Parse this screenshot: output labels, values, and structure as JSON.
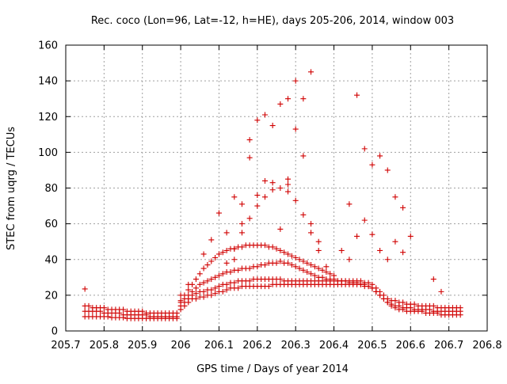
{
  "chart_data": {
    "type": "scatter",
    "title": "Rec. coco (Lon=96, Lat=-12, h=HE), days 205-206, 2014, window 003",
    "xlabel": "GPS time / Days of year 2014",
    "ylabel": "STEC from uqrg / TECUs",
    "xlim": [
      205.7,
      206.8
    ],
    "ylim": [
      0,
      160
    ],
    "xticks": [
      "205.7",
      "205.8",
      "205.9",
      "206",
      "206.1",
      "206.2",
      "206.3",
      "206.4",
      "206.5",
      "206.6",
      "206.7",
      "206.8"
    ],
    "yticks": [
      "0",
      "20",
      "40",
      "60",
      "80",
      "100",
      "120",
      "140",
      "160"
    ],
    "grid": true,
    "marker": "+",
    "color": "#d00000",
    "series": [
      {
        "x": [
          205.75,
          205.76,
          205.77,
          205.78,
          205.79,
          205.8,
          205.81,
          205.82,
          205.83,
          205.84,
          205.85,
          205.86,
          205.87,
          205.88,
          205.89,
          205.9,
          205.91,
          205.92,
          205.93,
          205.94,
          205.95,
          205.96,
          205.97,
          205.98,
          205.99,
          206.0,
          206.01,
          206.02,
          206.03,
          206.04,
          206.05,
          206.06,
          206.07,
          206.08,
          206.09,
          206.1,
          206.11,
          206.12,
          206.13,
          206.14,
          206.15,
          206.16,
          206.17,
          206.18,
          206.19,
          206.2,
          206.21,
          206.22,
          206.23,
          206.24,
          206.25,
          206.26,
          206.27,
          206.28,
          206.29,
          206.3,
          206.31,
          206.32,
          206.33,
          206.34,
          206.35,
          206.36,
          206.37,
          206.38,
          206.39,
          206.4,
          206.41,
          206.42,
          206.43,
          206.44,
          206.45,
          206.46,
          206.47,
          206.48,
          206.49,
          206.5,
          206.51,
          206.52,
          206.53,
          206.54,
          206.55,
          206.56,
          206.57,
          206.58,
          206.59,
          206.6,
          206.61,
          206.62,
          206.63,
          206.64,
          206.65,
          206.66,
          206.67,
          206.68,
          206.69,
          206.7,
          206.71,
          206.72,
          206.73
        ],
        "y": [
          8,
          8,
          8,
          8,
          8,
          8,
          8,
          7.5,
          7.5,
          7.5,
          7.5,
          7,
          7,
          7,
          7,
          7,
          7,
          7,
          7,
          7,
          7,
          7,
          7,
          7,
          7,
          12,
          14,
          16,
          18,
          18,
          19,
          19,
          20,
          20,
          21,
          22,
          22,
          23,
          24,
          24,
          24,
          25,
          25,
          25,
          25,
          25,
          25,
          25,
          25,
          26,
          26,
          26,
          26,
          26,
          26,
          26,
          26,
          26,
          26,
          26,
          26,
          26,
          26,
          26,
          26,
          26,
          26,
          26,
          26,
          26,
          26,
          26,
          26,
          25,
          25,
          24,
          22,
          20,
          18,
          16,
          14,
          13,
          12,
          12,
          11,
          11,
          11,
          11,
          11,
          10,
          10,
          10,
          10,
          9,
          9,
          9,
          9,
          9,
          9
        ]
      },
      {
        "x": [
          205.75,
          205.76,
          205.77,
          205.78,
          205.79,
          205.8,
          205.81,
          205.82,
          205.83,
          205.84,
          205.85,
          205.86,
          205.87,
          205.88,
          205.89,
          205.9,
          205.91,
          205.92,
          205.93,
          205.94,
          205.95,
          205.96,
          205.97,
          205.98,
          205.99,
          206.0,
          206.01,
          206.02,
          206.03,
          206.04,
          206.05,
          206.06,
          206.07,
          206.08,
          206.09,
          206.1,
          206.11,
          206.12,
          206.13,
          206.14,
          206.15,
          206.16,
          206.17,
          206.18,
          206.19,
          206.2,
          206.21,
          206.22,
          206.23,
          206.24,
          206.25,
          206.26,
          206.27,
          206.28,
          206.29,
          206.3,
          206.31,
          206.32,
          206.33,
          206.34,
          206.35,
          206.36,
          206.37,
          206.38,
          206.39,
          206.4,
          206.41,
          206.42,
          206.43,
          206.44,
          206.45,
          206.46,
          206.47,
          206.48,
          206.49,
          206.5,
          206.51,
          206.52,
          206.53,
          206.54,
          206.55,
          206.56,
          206.57,
          206.58,
          206.59,
          206.6,
          206.61,
          206.62,
          206.63,
          206.64,
          206.65,
          206.66,
          206.67,
          206.68,
          206.69,
          206.7,
          206.71,
          206.72,
          206.73
        ],
        "y": [
          11,
          11,
          11,
          11,
          11,
          10,
          10,
          10,
          10,
          10,
          9,
          9,
          9,
          9,
          9,
          9,
          9,
          8,
          8,
          8,
          8,
          8,
          8,
          8,
          8,
          14,
          16,
          18,
          20,
          21,
          22,
          22,
          23,
          23,
          24,
          25,
          26,
          26,
          27,
          27,
          28,
          28,
          28,
          28,
          29,
          29,
          29,
          29,
          29,
          29,
          29,
          29,
          28,
          28,
          28,
          28,
          28,
          28,
          28,
          28,
          28,
          28,
          28,
          28,
          28,
          28,
          28,
          28,
          28,
          27,
          27,
          27,
          26,
          26,
          25,
          24,
          22,
          20,
          18,
          16,
          15,
          14,
          14,
          13,
          13,
          13,
          12,
          12,
          12,
          12,
          12,
          11,
          11,
          11,
          11,
          11,
          11,
          11,
          11
        ]
      },
      {
        "x": [
          205.75,
          205.76,
          205.77,
          205.78,
          205.79,
          205.8,
          205.81,
          205.82,
          205.83,
          205.84,
          205.85,
          205.86,
          205.87,
          205.88,
          205.89,
          205.9,
          205.91,
          205.92,
          205.93,
          205.94,
          205.95,
          205.96,
          205.97,
          205.98,
          205.99,
          206.0,
          206.01,
          206.02,
          206.03,
          206.04,
          206.05,
          206.06,
          206.07,
          206.08,
          206.09,
          206.1,
          206.11,
          206.12,
          206.13,
          206.14,
          206.15,
          206.16,
          206.17,
          206.18,
          206.19,
          206.2,
          206.21,
          206.22,
          206.23,
          206.24,
          206.25,
          206.26,
          206.27,
          206.28,
          206.29,
          206.3,
          206.31,
          206.32,
          206.33,
          206.34,
          206.35,
          206.36,
          206.37,
          206.38,
          206.39,
          206.4,
          206.41,
          206.42,
          206.43,
          206.44,
          206.45,
          206.46,
          206.47,
          206.48,
          206.49,
          206.5,
          206.51,
          206.52,
          206.53,
          206.54,
          206.55,
          206.56,
          206.57,
          206.58,
          206.59,
          206.6,
          206.61,
          206.62,
          206.63,
          206.64,
          206.65,
          206.66,
          206.67,
          206.68,
          206.69,
          206.7,
          206.71,
          206.72,
          206.73
        ],
        "y": [
          14,
          14,
          13,
          13,
          13,
          13,
          12,
          12,
          12,
          12,
          12,
          11,
          11,
          11,
          11,
          11,
          10,
          10,
          10,
          10,
          10,
          10,
          10,
          10,
          10,
          16,
          18,
          20,
          22,
          24,
          26,
          27,
          28,
          29,
          30,
          31,
          32,
          33,
          33,
          34,
          34,
          35,
          35,
          35,
          36,
          36,
          37,
          37,
          38,
          38,
          38,
          39,
          38,
          38,
          37,
          36,
          35,
          34,
          33,
          32,
          31,
          30,
          30,
          29,
          29,
          29,
          28,
          28,
          28,
          28,
          28,
          28,
          28,
          27,
          27,
          26,
          24,
          22,
          20,
          18,
          17,
          17,
          16,
          16,
          15,
          15,
          15,
          14,
          14,
          14,
          14,
          14,
          13,
          13,
          13,
          13,
          13,
          13,
          13
        ]
      },
      {
        "x": [
          206.0,
          206.01,
          206.02,
          206.03,
          206.04,
          206.05,
          206.06,
          206.07,
          206.08,
          206.09,
          206.1,
          206.11,
          206.12,
          206.13,
          206.14,
          206.15,
          206.16,
          206.17,
          206.18,
          206.19,
          206.2,
          206.21,
          206.22,
          206.23,
          206.24,
          206.25,
          206.26,
          206.27,
          206.28,
          206.29,
          206.3,
          206.31,
          206.32,
          206.33,
          206.34,
          206.35,
          206.36,
          206.37,
          206.38,
          206.39,
          206.4
        ],
        "y": [
          17,
          20,
          23,
          26,
          29,
          32,
          35,
          37,
          39,
          41,
          43,
          44,
          45,
          46,
          46,
          47,
          47,
          48,
          48,
          48,
          48,
          48,
          48,
          47,
          47,
          46,
          45,
          44,
          43,
          42,
          41,
          40,
          39,
          38,
          37,
          36,
          35,
          34,
          33,
          32,
          31
        ]
      },
      {
        "x": [
          206.12,
          206.14,
          206.16,
          206.18,
          206.2,
          206.22,
          206.24,
          206.26,
          206.28,
          206.3,
          206.32,
          206.34,
          206.36,
          206.38
        ],
        "y": [
          38,
          46,
          55,
          63,
          70,
          75,
          79,
          80,
          78,
          73,
          65,
          55,
          45,
          36
        ]
      },
      {
        "x": [
          206.14,
          206.16,
          206.18,
          206.2,
          206.22,
          206.24,
          206.26,
          206.28,
          206.3,
          206.32,
          206.34
        ],
        "y": [
          40,
          60,
          97,
          118,
          121,
          115,
          127,
          130,
          140,
          130,
          145
        ]
      },
      {
        "x": [
          206.28,
          206.3,
          206.32,
          206.34,
          206.36
        ],
        "y": [
          85,
          113,
          98,
          60,
          50
        ]
      },
      {
        "x": [
          206.42,
          206.44,
          206.46,
          206.48,
          206.5,
          206.52,
          206.54,
          206.56,
          206.58,
          206.6
        ],
        "y": [
          45,
          71,
          132,
          102,
          93,
          98,
          90,
          75,
          69,
          53
        ]
      },
      {
        "x": [
          206.44,
          206.46,
          206.48,
          206.5,
          206.52,
          206.54,
          206.56,
          206.58
        ],
        "y": [
          40,
          53,
          62,
          54,
          45,
          40,
          50,
          44
        ]
      },
      {
        "x": [
          205.75,
          206.0,
          206.02,
          206.06,
          206.08,
          206.1,
          206.12,
          206.14,
          206.16,
          206.18,
          206.2,
          206.22,
          206.24,
          206.26,
          206.28,
          206.66,
          206.68
        ],
        "y": [
          23.5,
          20,
          26,
          43,
          51,
          66,
          55,
          75,
          71,
          107,
          76,
          84,
          83,
          57,
          82,
          29,
          22
        ]
      }
    ]
  }
}
